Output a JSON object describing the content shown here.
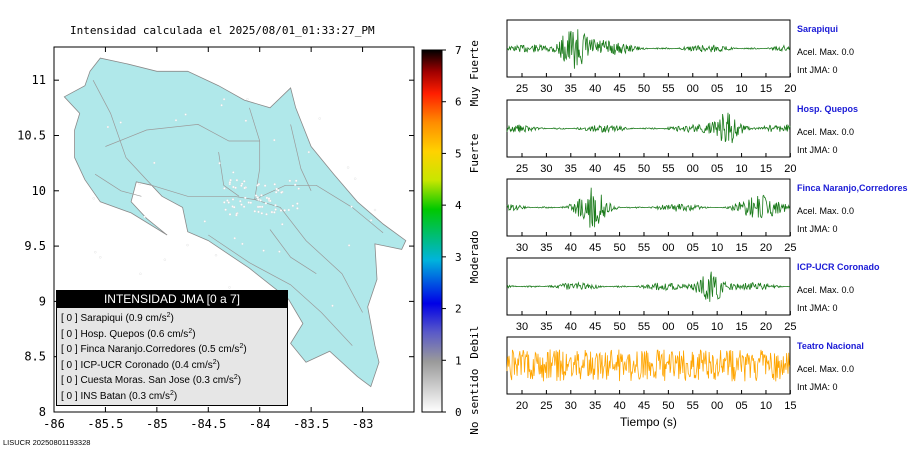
{
  "title": "Intensidad calculada el 2025/08/01_01:33:27_PM",
  "footer": "LISUCR 20250801193328",
  "map": {
    "x_ticks": [
      "-86",
      "-85.5",
      "-85",
      "-84.5",
      "-84",
      "-83.5",
      "-83"
    ],
    "y_ticks": [
      "11",
      "10.5",
      "10",
      "9.5",
      "9",
      "8.5",
      "8"
    ],
    "xlim": [
      -86,
      -82.5
    ],
    "ylim": [
      8,
      11.3
    ],
    "land_color": "#b0e8ea"
  },
  "colorbar": {
    "ticks": [
      "7",
      "6",
      "5",
      "4",
      "3",
      "2",
      "1",
      "0"
    ],
    "range": [
      0,
      7
    ],
    "categories": [
      "Muy Fuerte",
      "Fuerte",
      "Moderado",
      "Debil",
      "No sentido"
    ]
  },
  "legend": {
    "header": "INTENSIDAD JMA [0 a 7]",
    "entries": [
      {
        "jma": "[ 0 ]",
        "station": "Sarapiqui",
        "pga": "(0.9 cm/s",
        "sup": "2",
        "close": ")"
      },
      {
        "jma": "[ 0 ]",
        "station": "Hosp. Quepos",
        "pga": "(0.6 cm/s",
        "sup": "2",
        "close": ")"
      },
      {
        "jma": "[ 0 ]",
        "station": "Finca Naranjo.Corredores",
        "pga": "(0.5 cm/s",
        "sup": "2",
        "close": ")"
      },
      {
        "jma": "[ 0 ]",
        "station": "ICP-UCR Coronado",
        "pga": "(0.4 cm/s",
        "sup": "2",
        "close": ")"
      },
      {
        "jma": "[ 0 ]",
        "station": "Cuesta Moras. San Jose",
        "pga": "(0.3 cm/s",
        "sup": "2",
        "close": ")"
      },
      {
        "jma": "[ 0 ]",
        "station": "INS Batan",
        "pga": "(0.3 cm/s",
        "sup": "2",
        "close": ")"
      }
    ]
  },
  "seismograms": [
    {
      "name": "Sarapiqui",
      "acel": "Acel. Max. 0.0",
      "int": "Int JMA: 0",
      "color": "#1a7a1a",
      "ticks": [
        "25",
        "30",
        "35",
        "40",
        "45",
        "50",
        "55",
        "00",
        "05",
        "10",
        "15",
        "20"
      ],
      "burst": 0.23
    },
    {
      "name": "Hosp. Quepos",
      "acel": "Acel. Max. 0.0",
      "int": "Int JMA: 0",
      "color": "#1a7a1a",
      "ticks": [
        "25",
        "30",
        "35",
        "40",
        "45",
        "50",
        "55",
        "00",
        "05",
        "10",
        "15",
        "20"
      ],
      "burst": 0.78
    },
    {
      "name": "Finca Naranjo,Corredores",
      "acel": "Acel. Max. 0.0",
      "int": "Int JMA: 0",
      "color": "#1a7a1a",
      "ticks": [
        "30",
        "35",
        "40",
        "45",
        "50",
        "55",
        "00",
        "05",
        "10",
        "15",
        "20",
        "25"
      ],
      "burst": 0.3
    },
    {
      "name": "ICP-UCR Coronado",
      "acel": "Acel. Max. 0.0",
      "int": "Int JMA: 0",
      "color": "#1a7a1a",
      "ticks": [
        "30",
        "35",
        "40",
        "45",
        "50",
        "55",
        "00",
        "05",
        "10",
        "15",
        "20",
        "25"
      ],
      "burst": 0.72
    },
    {
      "name": "Teatro Nacional",
      "acel": "Acel. Max. 0.0",
      "int": "Int JMA: 0",
      "color": "#ffa500",
      "ticks": [
        "20",
        "25",
        "30",
        "35",
        "40",
        "45",
        "50",
        "55",
        "00",
        "05",
        "10",
        "15"
      ],
      "burst": -1
    }
  ],
  "xaxis_title": "Tiempo (s)",
  "chart_data": {
    "type": "map",
    "title": "Intensidad calculada el 2025/08/01_01:33:27_PM",
    "xlabel": "",
    "ylabel": "",
    "xlim": [
      -86,
      -82.5
    ],
    "ylim": [
      8,
      11.3
    ],
    "colorbar_range": [
      0,
      7
    ],
    "stations": [
      {
        "name": "Sarapiqui",
        "jma": 0,
        "pga_cm_s2": 0.9
      },
      {
        "name": "Hosp. Quepos",
        "jma": 0,
        "pga_cm_s2": 0.6
      },
      {
        "name": "Finca Naranjo.Corredores",
        "jma": 0,
        "pga_cm_s2": 0.5
      },
      {
        "name": "ICP-UCR Coronado",
        "jma": 0,
        "pga_cm_s2": 0.4
      },
      {
        "name": "Cuesta Moras. San Jose",
        "jma": 0,
        "pga_cm_s2": 0.3
      },
      {
        "name": "INS Batan",
        "jma": 0,
        "pga_cm_s2": 0.3
      }
    ]
  }
}
